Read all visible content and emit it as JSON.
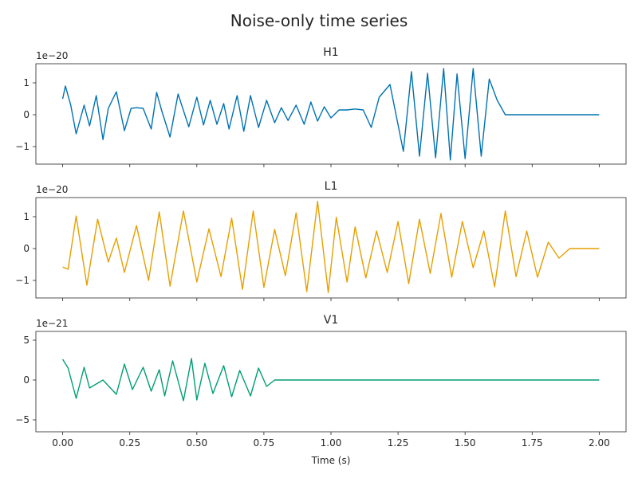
{
  "chart_data": {
    "type": "line",
    "title": "Noise-only time series",
    "xlabel": "Time (s)",
    "xlim": [
      -0.1,
      2.1
    ],
    "xticks": [
      0.0,
      0.25,
      0.5,
      0.75,
      1.0,
      1.25,
      1.5,
      1.75,
      2.0
    ],
    "xtick_labels": [
      "0.00",
      "0.25",
      "0.50",
      "0.75",
      "1.00",
      "1.25",
      "1.50",
      "1.75",
      "2.00"
    ],
    "subplots": [
      {
        "name": "H1",
        "color": "#0072b2",
        "offset_label": "1e−20",
        "ylim": [
          -1.55,
          1.6
        ],
        "yticks": [
          -1,
          0,
          1
        ],
        "ytick_labels": [
          "−1",
          "0",
          "1"
        ],
        "x": [
          0.0,
          0.01,
          0.03,
          0.05,
          0.08,
          0.1,
          0.125,
          0.15,
          0.17,
          0.2,
          0.23,
          0.255,
          0.275,
          0.3,
          0.33,
          0.35,
          0.37,
          0.4,
          0.43,
          0.47,
          0.5,
          0.525,
          0.55,
          0.575,
          0.6,
          0.62,
          0.65,
          0.675,
          0.7,
          0.73,
          0.76,
          0.79,
          0.815,
          0.84,
          0.87,
          0.9,
          0.925,
          0.95,
          0.975,
          1.0,
          1.03,
          1.06,
          1.09,
          1.12,
          1.15,
          1.18,
          1.22,
          1.27,
          1.3,
          1.33,
          1.36,
          1.39,
          1.42,
          1.445,
          1.47,
          1.5,
          1.53,
          1.56,
          1.59,
          1.62,
          1.65,
          1.685,
          1.72,
          1.75,
          1.785,
          1.82,
          1.85,
          1.88,
          1.91,
          1.94,
          1.97,
          1.985,
          2.0
        ],
        "y": [
          0.5,
          0.9,
          0.3,
          -0.6,
          0.3,
          -0.35,
          0.6,
          -0.78,
          0.2,
          0.72,
          -0.5,
          0.2,
          0.22,
          0.2,
          -0.45,
          0.7,
          0.1,
          -0.7,
          0.65,
          -0.38,
          0.55,
          -0.32,
          0.45,
          -0.3,
          0.35,
          -0.45,
          0.6,
          -0.52,
          0.6,
          -0.4,
          0.45,
          -0.25,
          0.22,
          -0.18,
          0.3,
          -0.3,
          0.4,
          -0.2,
          0.25,
          -0.1,
          0.15,
          0.15,
          0.18,
          0.15,
          -0.4,
          0.55,
          0.95,
          -1.15,
          1.35,
          -1.3,
          1.3,
          -1.35,
          1.45,
          -1.42,
          1.28,
          -1.38,
          1.45,
          -1.3,
          1.12,
          0.45,
          0.0,
          0.0,
          0.0,
          0.0,
          0.0,
          0.0,
          0.0,
          0.0,
          0.0,
          0.0,
          0.0,
          0.0,
          0.0
        ]
      },
      {
        "name": "L1",
        "color": "#e69f00",
        "offset_label": "1e−20",
        "ylim": [
          -1.55,
          1.6
        ],
        "yticks": [
          -1,
          0,
          1
        ],
        "ytick_labels": [
          "−1",
          "0",
          "1"
        ],
        "x": [
          0.0,
          0.02,
          0.05,
          0.09,
          0.13,
          0.17,
          0.2,
          0.23,
          0.275,
          0.32,
          0.36,
          0.4,
          0.45,
          0.5,
          0.545,
          0.59,
          0.63,
          0.67,
          0.71,
          0.75,
          0.79,
          0.83,
          0.87,
          0.91,
          0.95,
          0.99,
          1.02,
          1.06,
          1.09,
          1.13,
          1.17,
          1.21,
          1.25,
          1.29,
          1.33,
          1.37,
          1.41,
          1.45,
          1.49,
          1.53,
          1.57,
          1.61,
          1.65,
          1.69,
          1.73,
          1.77,
          1.81,
          1.85,
          1.89,
          1.93,
          1.96,
          2.0
        ],
        "y": [
          -0.58,
          -0.65,
          1.02,
          -1.15,
          0.92,
          -0.42,
          0.33,
          -0.75,
          0.72,
          -1.0,
          1.15,
          -1.18,
          1.18,
          -1.05,
          0.62,
          -0.88,
          0.95,
          -1.28,
          1.18,
          -1.22,
          0.6,
          -0.85,
          1.12,
          -1.35,
          1.48,
          -1.38,
          0.98,
          -1.05,
          0.68,
          -0.92,
          0.55,
          -0.75,
          0.85,
          -1.1,
          0.92,
          -0.78,
          1.1,
          -0.9,
          0.85,
          -0.6,
          0.55,
          -1.2,
          1.18,
          -0.88,
          0.55,
          -0.9,
          0.2,
          -0.3,
          0.0,
          0.0,
          0.0,
          0.0
        ]
      },
      {
        "name": "V1",
        "color": "#009e73",
        "offset_label": "1e−21",
        "ylim": [
          -6.5,
          6.1
        ],
        "yticks": [
          -5,
          0,
          5
        ],
        "ytick_labels": [
          "−5",
          "0",
          "5"
        ],
        "x": [
          0.0,
          0.02,
          0.05,
          0.08,
          0.1,
          0.13,
          0.15,
          0.2,
          0.23,
          0.26,
          0.3,
          0.33,
          0.36,
          0.38,
          0.41,
          0.45,
          0.48,
          0.5,
          0.53,
          0.56,
          0.6,
          0.63,
          0.66,
          0.7,
          0.73,
          0.76,
          0.79,
          0.83,
          0.86,
          0.89,
          0.92,
          0.95,
          0.98,
          1.01,
          1.04,
          1.07,
          1.1,
          1.13,
          1.16,
          1.2,
          1.24,
          1.28,
          1.31,
          1.34,
          1.37,
          1.4,
          1.43,
          1.46,
          1.49,
          1.52,
          1.55,
          1.58,
          1.61,
          1.64,
          1.67,
          1.7,
          1.73,
          1.76,
          1.79,
          1.82,
          1.85,
          1.88,
          1.91,
          1.94,
          1.97,
          2.0
        ],
        "y": [
          2.6,
          1.5,
          -2.3,
          1.6,
          -1.0,
          -0.4,
          0.0,
          -1.8,
          2.0,
          -1.2,
          1.6,
          -1.4,
          1.3,
          -2.0,
          2.4,
          -2.6,
          2.7,
          -2.5,
          2.1,
          -1.7,
          1.8,
          -2.1,
          1.2,
          -2.0,
          1.5,
          -0.8,
          0.0,
          0.0,
          0.0,
          0.0,
          0.0,
          0.0,
          0.0,
          0.0,
          0.0,
          0.0,
          0.0,
          0.0,
          0.0,
          0.0,
          0.0,
          0.0,
          0.0,
          0.0,
          0.0,
          0.0,
          0.0,
          0.0,
          0.0,
          0.0,
          0.0,
          0.0,
          0.0,
          0.0,
          0.0,
          0.0,
          0.0,
          0.0,
          0.0,
          0.0,
          0.0,
          0.0,
          0.0,
          0.0,
          0.0,
          0.0
        ]
      }
    ]
  }
}
